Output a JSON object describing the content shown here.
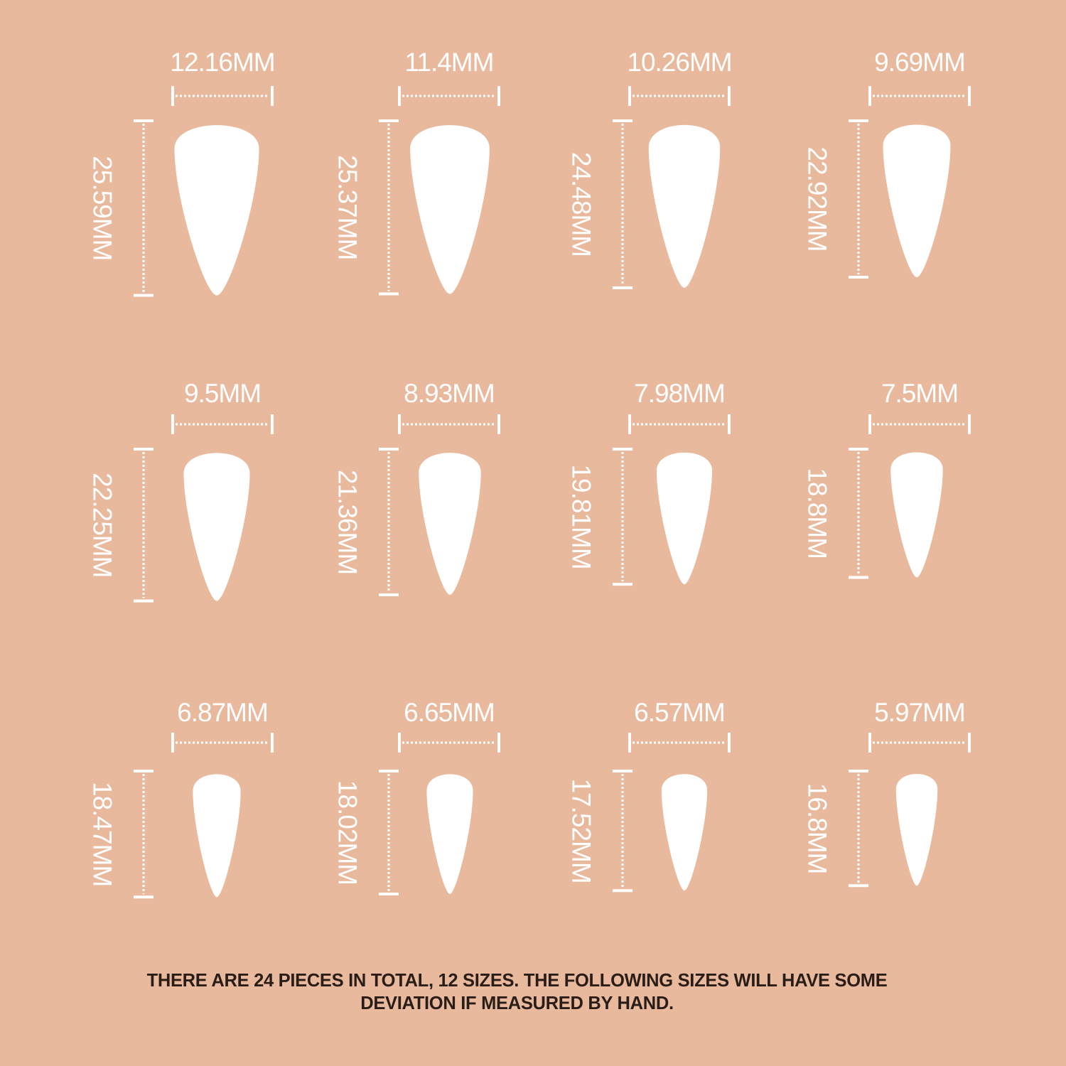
{
  "colors": {
    "background": "#e8b99d",
    "nail": "#ffffff",
    "text": "#2a1d17"
  },
  "unit": "MM",
  "sizes": [
    {
      "width": "12.16MM",
      "length": "25.59MM",
      "w": 12.16,
      "l": 25.59
    },
    {
      "width": "11.4MM",
      "length": "25.37MM",
      "w": 11.4,
      "l": 25.37
    },
    {
      "width": "10.26MM",
      "length": "24.48MM",
      "w": 10.26,
      "l": 24.48
    },
    {
      "width": "9.69MM",
      "length": "22.92MM",
      "w": 9.69,
      "l": 22.92
    },
    {
      "width": "9.5MM",
      "length": "22.25MM",
      "w": 9.5,
      "l": 22.25
    },
    {
      "width": "8.93MM",
      "length": "21.36MM",
      "w": 8.93,
      "l": 21.36
    },
    {
      "width": "7.98MM",
      "length": "19.81MM",
      "w": 7.98,
      "l": 19.81
    },
    {
      "width": "7.5MM",
      "length": "18.8MM",
      "w": 7.5,
      "l": 18.8
    },
    {
      "width": "6.87MM",
      "length": "18.47MM",
      "w": 6.87,
      "l": 18.47
    },
    {
      "width": "6.65MM",
      "length": "18.02MM",
      "w": 6.65,
      "l": 18.02
    },
    {
      "width": "6.57MM",
      "length": "17.52MM",
      "w": 6.57,
      "l": 17.52
    },
    {
      "width": "5.97MM",
      "length": "16.8MM",
      "w": 5.97,
      "l": 16.8
    }
  ],
  "note": {
    "line1": "THERE ARE 24 PIECES IN TOTAL, 12 SIZES. THE FOLLOWING SIZES WILL HAVE SOME",
    "line2": "DEVIATION IF MEASURED BY HAND."
  }
}
